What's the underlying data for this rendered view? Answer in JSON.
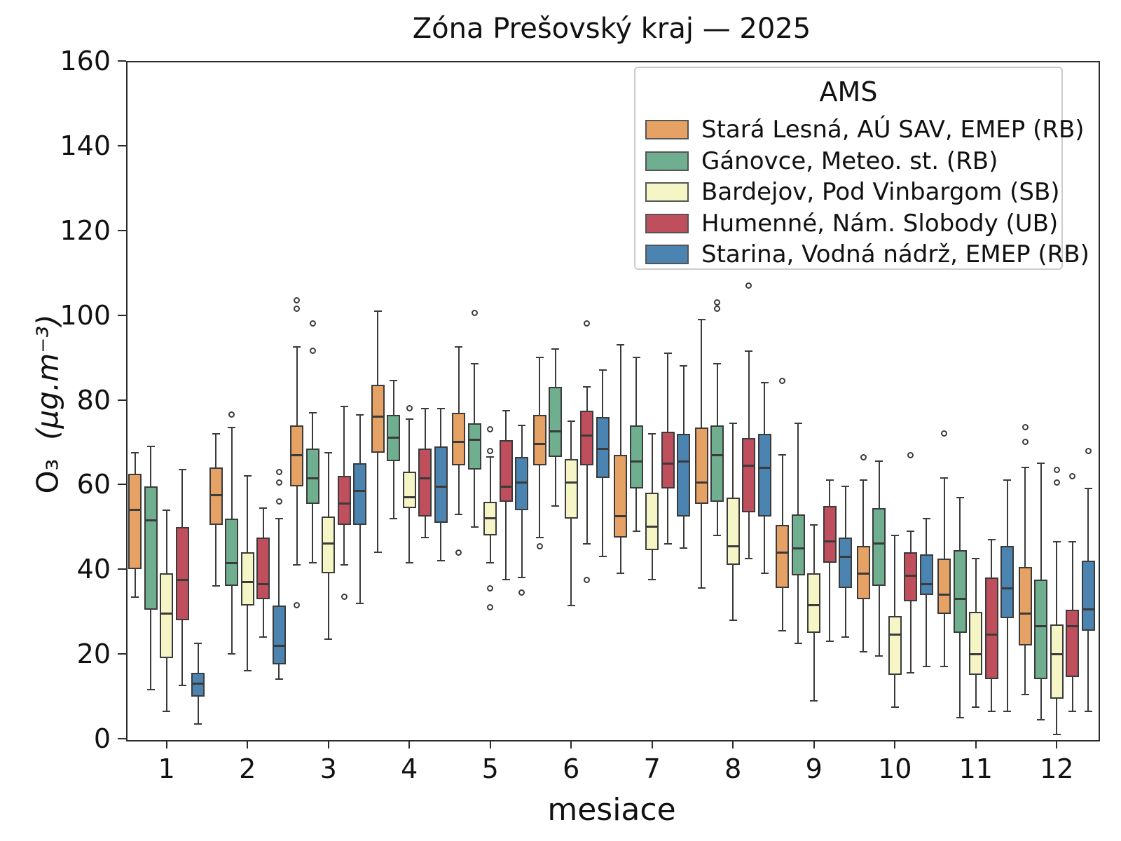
{
  "chart_data": {
    "type": "boxplot-grouped",
    "title": "Zóna Prešovský kraj —  2025",
    "xlabel": "mesiace",
    "ylabel_main": "O₃",
    "ylabel_unit": "(µg.m⁻³)",
    "legend_title": "AMS",
    "categories": [
      "1",
      "2",
      "3",
      "4",
      "5",
      "6",
      "7",
      "8",
      "9",
      "10",
      "11",
      "12"
    ],
    "yticks": [
      0,
      20,
      40,
      60,
      80,
      100,
      120,
      140,
      160
    ],
    "ylim": [
      0,
      160
    ],
    "grid": false,
    "legend_position": "upper right",
    "edge_color": "#3b3b3b",
    "spine_color": "#2b2b2b",
    "legend_border_color": "#cccccc",
    "box_format": [
      "whislo",
      "q1",
      "median",
      "q3",
      "whishi",
      "outliers"
    ],
    "series": [
      {
        "name": "Stará Lesná, AÚ SAV, EMEP (RB)",
        "color": "#E5A264",
        "boxes": [
          [
            33.5,
            40,
            54,
            62.5,
            67.5,
            []
          ],
          [
            36,
            50.5,
            57.5,
            64,
            72,
            []
          ],
          [
            41,
            59.5,
            67,
            74,
            92.5,
            [
              31.5,
              101.5,
              103.5
            ]
          ],
          [
            44,
            67.5,
            76,
            83.5,
            101,
            []
          ],
          [
            53,
            64.5,
            70,
            77,
            92.5,
            [
              44
            ]
          ],
          [
            47.5,
            64.5,
            69.5,
            76.5,
            90,
            [
              45.5
            ]
          ],
          [
            39,
            47.5,
            52.5,
            67,
            93,
            []
          ],
          [
            35.5,
            55.5,
            60.5,
            73.5,
            99,
            []
          ],
          [
            25.5,
            35.5,
            44,
            50.5,
            67,
            [
              84.5
            ]
          ],
          [
            20.5,
            33,
            39,
            45.5,
            61,
            [
              66.5
            ]
          ],
          [
            17,
            29.5,
            34,
            42.5,
            61.5,
            [
              72
            ]
          ],
          [
            10.5,
            22,
            29.5,
            40.5,
            64,
            [
              70,
              73.5
            ]
          ]
        ]
      },
      {
        "name": "Gánovce, Meteo. st. (RB)",
        "color": "#6FAF90",
        "boxes": [
          [
            11.5,
            30.5,
            51.5,
            59.5,
            69,
            []
          ],
          [
            20,
            36,
            41.5,
            52,
            73.5,
            [
              76.5
            ]
          ],
          [
            41.5,
            55.5,
            61.5,
            68.5,
            77,
            [
              91.5,
              98
            ]
          ],
          [
            52,
            65.5,
            71,
            76.5,
            84.5,
            []
          ],
          [
            50,
            63.5,
            70.5,
            74.5,
            88.5,
            [
              100.5
            ]
          ],
          [
            55,
            66.5,
            72.5,
            83,
            92,
            []
          ],
          [
            49,
            59,
            65.5,
            74,
            90,
            []
          ],
          [
            48,
            56,
            67,
            74,
            88.5,
            [
              101.5,
              103
            ]
          ],
          [
            22.5,
            38.5,
            45,
            53,
            74.5,
            []
          ],
          [
            19.5,
            36,
            46,
            54.5,
            65.5,
            []
          ],
          [
            5,
            25,
            33,
            44.5,
            57,
            []
          ],
          [
            4.5,
            14,
            26.5,
            37.5,
            65,
            []
          ]
        ]
      },
      {
        "name": "Bardejov, Pod Vinbargom (SB)",
        "color": "#F5F5C6",
        "boxes": [
          [
            6.5,
            19,
            29.5,
            39,
            54,
            []
          ],
          [
            16,
            31.5,
            37,
            44,
            62,
            []
          ],
          [
            23.5,
            39,
            46,
            52.5,
            67.5,
            []
          ],
          [
            41.5,
            54.5,
            57,
            63,
            75.5,
            [
              78
            ]
          ],
          [
            41.5,
            48,
            52,
            56,
            66.5,
            [
              31,
              35.5,
              68,
              73
            ]
          ],
          [
            31.5,
            52,
            60.5,
            66,
            75,
            []
          ],
          [
            37.5,
            44.5,
            50,
            58,
            72,
            []
          ],
          [
            28,
            41,
            45.5,
            57,
            74.5,
            []
          ],
          [
            9,
            25,
            31.5,
            39,
            50.5,
            []
          ],
          [
            7.5,
            15,
            24.5,
            29,
            48,
            []
          ],
          [
            7.5,
            15,
            20,
            30,
            42.5,
            []
          ],
          [
            1,
            9.5,
            20,
            27,
            46.5,
            [
              60.5,
              63.5
            ]
          ]
        ]
      },
      {
        "name": "Humenné, Nám. Slobody (UB)",
        "color": "#C04F5E",
        "boxes": [
          [
            12.5,
            28,
            37.5,
            50,
            63.5,
            []
          ],
          [
            24,
            33,
            36.5,
            47.5,
            54.5,
            []
          ],
          [
            41,
            50.5,
            55.5,
            62,
            78.5,
            [
              33.5
            ]
          ],
          [
            47.5,
            52.5,
            61.5,
            68.5,
            78,
            []
          ],
          [
            37.5,
            56,
            59.5,
            70.5,
            77.5,
            []
          ],
          [
            46,
            64.5,
            71.5,
            77.5,
            83,
            [
              37.5,
              98
            ]
          ],
          [
            46,
            59,
            65,
            72.5,
            91,
            []
          ],
          [
            42.5,
            53.5,
            64.5,
            71,
            91.5,
            [
              107
            ]
          ],
          [
            23,
            41.5,
            46.5,
            55,
            61,
            []
          ],
          [
            15.5,
            32.5,
            38.5,
            44,
            49,
            [
              67
            ]
          ],
          [
            6.5,
            14,
            24.5,
            38,
            47,
            []
          ],
          [
            6.5,
            14.5,
            26.5,
            30.5,
            46.5,
            [
              62
            ]
          ]
        ]
      },
      {
        "name": "Starina, Vodná nádrž, EMEP (RB)",
        "color": "#4B84B1",
        "boxes": [
          [
            3.5,
            10,
            13,
            15.5,
            22.5,
            []
          ],
          [
            14,
            17.5,
            22,
            31.5,
            52,
            [
              56,
              60.5,
              63
            ]
          ],
          [
            32,
            50.5,
            58.5,
            65,
            76.5,
            []
          ],
          [
            42,
            51,
            59.5,
            69,
            78,
            []
          ],
          [
            38,
            54,
            60.5,
            66.5,
            74,
            [
              34.5
            ]
          ],
          [
            43,
            61.5,
            68.5,
            76,
            87,
            []
          ],
          [
            45,
            52.5,
            65.5,
            72,
            88,
            []
          ],
          [
            39,
            52.5,
            64,
            72,
            84,
            []
          ],
          [
            24,
            35.5,
            43,
            47.5,
            59.5,
            []
          ],
          [
            17,
            34,
            36.5,
            43.5,
            52,
            []
          ],
          [
            6.5,
            28.5,
            35.5,
            45.5,
            61,
            []
          ],
          [
            6.5,
            25.5,
            30.5,
            42,
            59,
            [
              68
            ]
          ]
        ]
      }
    ]
  }
}
